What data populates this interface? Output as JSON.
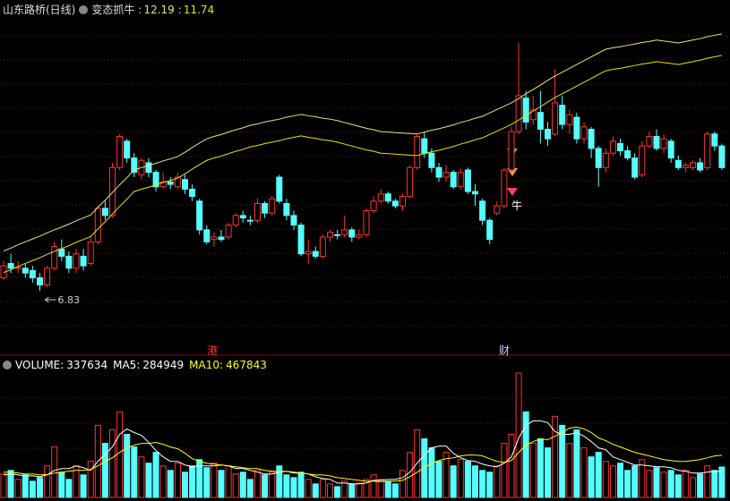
{
  "chart_data": [
    {
      "type": "candlestick",
      "title": "山东路桥(日线)",
      "indicator": "变态抓牛",
      "signal": "牛",
      "events": [
        "港",
        "财"
      ],
      "low_label": 6.83,
      "up_color": "#ff3232",
      "down_color": "#54ffff",
      "grid": true,
      "ylim": [
        5.71,
        12.56
      ],
      "open": [
        7.1,
        7.4,
        7.3,
        7.3,
        7.25,
        7.1,
        6.95,
        7.3,
        7.7,
        7.55,
        7.3,
        7.55,
        7.4,
        7.85,
        8.55,
        8.4,
        9.4,
        9.95,
        9.6,
        9.25,
        9.5,
        9.3,
        9.0,
        9.1,
        9.0,
        9.15,
        8.95,
        8.7,
        8.1,
        7.9,
        7.95,
        7.95,
        8.2,
        8.4,
        8.3,
        8.3,
        8.65,
        8.45,
        9.2,
        8.65,
        8.4,
        8.2,
        7.6,
        7.65,
        7.55,
        7.95,
        8.0,
        8.0,
        8.1,
        7.95,
        8.0,
        8.5,
        8.7,
        8.85,
        8.7,
        8.6,
        8.8,
        9.4,
        10.0,
        9.7,
        9.4,
        9.2,
        9.3,
        9.0,
        9.35,
        8.9,
        8.7,
        8.3,
        8.45,
        8.6,
        9.35,
        10.15,
        10.85,
        10.4,
        10.55,
        10.2,
        10.1,
        10.7,
        10.3,
        10.45,
        10.0,
        10.2,
        9.8,
        9.4,
        9.7,
        9.9,
        9.75,
        9.6,
        9.25,
        9.85,
        10.05,
        9.8,
        9.95,
        9.55,
        9.4,
        9.4,
        9.5,
        9.4,
        10.1,
        9.85
      ],
      "high": [
        7.45,
        7.6,
        7.45,
        7.4,
        7.35,
        7.2,
        7.35,
        7.85,
        7.9,
        7.65,
        7.7,
        7.7,
        7.95,
        8.6,
        8.7,
        9.5,
        10.1,
        10.0,
        9.7,
        9.6,
        9.6,
        9.35,
        9.3,
        9.2,
        9.3,
        9.25,
        9.05,
        8.75,
        8.2,
        8.05,
        8.1,
        8.25,
        8.45,
        8.5,
        8.4,
        8.75,
        8.7,
        8.8,
        9.25,
        8.75,
        8.5,
        8.25,
        7.9,
        7.75,
        8.0,
        8.1,
        8.1,
        8.4,
        8.15,
        8.1,
        8.55,
        8.8,
        8.95,
        8.9,
        8.75,
        8.85,
        9.45,
        10.1,
        10.15,
        9.8,
        9.5,
        9.45,
        9.35,
        9.4,
        9.4,
        9.05,
        8.75,
        8.35,
        8.7,
        9.4,
        10.25,
        12.0,
        11.0,
        10.9,
        11.0,
        10.35,
        11.45,
        10.9,
        10.6,
        10.55,
        10.35,
        10.25,
        9.85,
        9.8,
        10.05,
        10.0,
        9.85,
        9.7,
        9.95,
        10.15,
        10.2,
        10.1,
        10.0,
        9.65,
        9.5,
        9.55,
        9.6,
        10.15,
        10.15,
        9.9
      ],
      "low": [
        7.05,
        7.2,
        7.2,
        7.1,
        7.0,
        6.83,
        6.9,
        7.25,
        7.45,
        7.2,
        7.2,
        7.25,
        7.35,
        7.8,
        8.3,
        8.35,
        9.35,
        9.5,
        9.2,
        9.15,
        9.2,
        8.9,
        8.95,
        8.95,
        8.95,
        8.85,
        8.7,
        8.0,
        7.8,
        7.75,
        7.85,
        7.9,
        8.15,
        8.25,
        8.2,
        8.25,
        8.35,
        8.4,
        8.65,
        8.3,
        8.1,
        7.55,
        7.4,
        7.5,
        7.5,
        7.85,
        7.9,
        7.95,
        7.85,
        7.9,
        7.95,
        8.45,
        8.65,
        8.65,
        8.55,
        8.5,
        8.75,
        9.35,
        9.6,
        9.3,
        9.1,
        9.1,
        8.95,
        8.95,
        8.85,
        8.6,
        8.2,
        7.8,
        8.4,
        8.55,
        9.3,
        10.1,
        10.2,
        10.3,
        9.9,
        9.85,
        10.05,
        10.2,
        10.1,
        9.9,
        9.9,
        9.6,
        9.0,
        9.3,
        9.65,
        9.65,
        9.55,
        9.15,
        9.2,
        9.8,
        9.75,
        9.7,
        9.5,
        9.35,
        9.3,
        9.35,
        9.3,
        9.35,
        9.75,
        9.35
      ],
      "close": [
        7.35,
        7.3,
        7.32,
        7.2,
        7.1,
        6.95,
        7.3,
        7.75,
        7.55,
        7.3,
        7.6,
        7.35,
        7.85,
        8.55,
        8.4,
        9.4,
        10.05,
        9.6,
        9.3,
        9.55,
        9.3,
        9.0,
        9.1,
        9.05,
        9.2,
        8.95,
        8.8,
        8.1,
        7.85,
        7.95,
        7.9,
        8.2,
        8.4,
        8.35,
        8.3,
        8.65,
        8.45,
        8.75,
        8.7,
        8.4,
        8.2,
        7.6,
        7.65,
        7.55,
        7.95,
        8.05,
        8.0,
        8.1,
        7.95,
        8.0,
        8.5,
        8.7,
        8.85,
        8.7,
        8.6,
        8.8,
        9.4,
        10.05,
        9.7,
        9.4,
        9.2,
        9.3,
        9.0,
        9.3,
        8.9,
        8.85,
        8.3,
        7.9,
        8.6,
        9.35,
        10.15,
        10.9,
        10.35,
        10.6,
        10.2,
        10.0,
        10.75,
        10.3,
        10.5,
        10.0,
        10.25,
        9.8,
        9.4,
        9.7,
        9.95,
        9.75,
        9.6,
        9.2,
        9.85,
        10.05,
        9.8,
        10.0,
        9.6,
        9.4,
        9.45,
        9.5,
        9.35,
        10.1,
        9.85,
        9.4
      ],
      "series": [
        {
          "color": "#e6e67a",
          "values": [
            7.66,
            7.72,
            7.79,
            7.85,
            7.91,
            7.97,
            8.04,
            8.1,
            8.16,
            8.22,
            8.29,
            8.35,
            8.41,
            8.57,
            8.72,
            8.88,
            9.04,
            9.19,
            9.35,
            9.4,
            9.44,
            9.49,
            9.54,
            9.58,
            9.63,
            9.72,
            9.82,
            9.91,
            10.0,
            10.05,
            10.09,
            10.14,
            10.19,
            10.23,
            10.28,
            10.31,
            10.35,
            10.38,
            10.41,
            10.45,
            10.48,
            10.51,
            10.48,
            10.46,
            10.43,
            10.41,
            10.38,
            10.34,
            10.3,
            10.26,
            10.22,
            10.19,
            10.15,
            10.14,
            10.13,
            10.12,
            10.11,
            10.1,
            10.14,
            10.18,
            10.21,
            10.25,
            10.29,
            10.34,
            10.38,
            10.43,
            10.47,
            10.54,
            10.61,
            10.68,
            10.75,
            10.84,
            10.94,
            11.03,
            11.12,
            11.22,
            11.31,
            11.39,
            11.47,
            11.55,
            11.63,
            11.71,
            11.79,
            11.87,
            11.9,
            11.92,
            11.95,
            11.98,
            12.01,
            12.03,
            12.06,
            12.04,
            12.02,
            12.0,
            12.03,
            12.06,
            12.09,
            12.13,
            12.16,
            12.19
          ]
        },
        {
          "color": "#e6e600",
          "values": [
            7.21,
            7.27,
            7.34,
            7.4,
            7.46,
            7.52,
            7.59,
            7.65,
            7.71,
            7.77,
            7.84,
            7.9,
            7.96,
            8.12,
            8.27,
            8.43,
            8.59,
            8.74,
            8.9,
            8.95,
            8.99,
            9.04,
            9.09,
            9.13,
            9.18,
            9.27,
            9.37,
            9.46,
            9.55,
            9.6,
            9.64,
            9.69,
            9.74,
            9.78,
            9.83,
            9.86,
            9.9,
            9.93,
            9.96,
            10.0,
            10.03,
            10.06,
            10.03,
            10.01,
            9.98,
            9.96,
            9.93,
            9.89,
            9.85,
            9.81,
            9.77,
            9.74,
            9.7,
            9.69,
            9.68,
            9.67,
            9.66,
            9.65,
            9.69,
            9.73,
            9.76,
            9.8,
            9.84,
            9.89,
            9.93,
            9.98,
            10.02,
            10.09,
            10.16,
            10.23,
            10.3,
            10.39,
            10.49,
            10.58,
            10.67,
            10.77,
            10.86,
            10.94,
            11.02,
            11.1,
            11.18,
            11.26,
            11.34,
            11.42,
            11.45,
            11.47,
            11.5,
            11.53,
            11.56,
            11.58,
            11.61,
            11.59,
            11.57,
            11.55,
            11.58,
            11.61,
            11.64,
            11.68,
            11.71,
            11.74
          ]
        }
      ]
    },
    {
      "type": "volume",
      "ylim": [
        0,
        1400000
      ],
      "grid": true,
      "series": [
        {
          "name": "VOLUME",
          "color": "#ffffff",
          "values": [
            260000,
            300000,
            200000,
            250000,
            180000,
            220000,
            350000,
            560000,
            280000,
            200000,
            350000,
            250000,
            400000,
            800000,
            600000,
            750000,
            950000,
            700000,
            560000,
            450000,
            380000,
            500000,
            350000,
            300000,
            380000,
            280000,
            350000,
            420000,
            330000,
            380000,
            300000,
            350000,
            260000,
            280000,
            200000,
            300000,
            250000,
            280000,
            350000,
            250000,
            220000,
            280000,
            200000,
            150000,
            200000,
            150000,
            120000,
            180000,
            150000,
            160000,
            200000,
            250000,
            200000,
            180000,
            150000,
            300000,
            500000,
            750000,
            650000,
            550000,
            400000,
            500000,
            350000,
            420000,
            400000,
            350000,
            300000,
            280000,
            350000,
            600000,
            700000,
            1380000,
            950000,
            600000,
            650000,
            550000,
            900000,
            800000,
            600000,
            750000,
            550000,
            450000,
            500000,
            400000,
            350000,
            380000,
            300000,
            350000,
            420000,
            300000,
            330000,
            280000,
            300000,
            250000,
            300000,
            220000,
            260000,
            350000,
            300000,
            337634
          ]
        },
        {
          "name": "MA5",
          "color": "#ffffff",
          "values": [
            250000,
            260000,
            250000,
            240000,
            240000,
            230000,
            250000,
            300000,
            320000,
            320000,
            350000,
            330000,
            300000,
            400000,
            480000,
            560000,
            700000,
            760000,
            720000,
            690000,
            610000,
            520000,
            450000,
            400000,
            400000,
            360000,
            340000,
            350000,
            350000,
            350000,
            360000,
            350000,
            320000,
            320000,
            300000,
            280000,
            260000,
            260000,
            280000,
            290000,
            270000,
            270000,
            260000,
            230000,
            210000,
            200000,
            160000,
            160000,
            150000,
            150000,
            160000,
            190000,
            190000,
            200000,
            200000,
            220000,
            280000,
            380000,
            470000,
            550000,
            570000,
            570000,
            490000,
            440000,
            410000,
            400000,
            370000,
            350000,
            340000,
            380000,
            450000,
            660000,
            800000,
            850000,
            850000,
            830000,
            730000,
            700000,
            700000,
            720000,
            680000,
            620000,
            550000,
            530000,
            450000,
            420000,
            390000,
            360000,
            360000,
            350000,
            340000,
            340000,
            330000,
            300000,
            290000,
            270000,
            270000,
            280000,
            290000,
            284949
          ]
        },
        {
          "name": "MA10",
          "color": "#ffff00",
          "values": [
            280000,
            280000,
            270000,
            260000,
            260000,
            250000,
            255000,
            270000,
            280000,
            290000,
            300000,
            300000,
            310000,
            350000,
            400000,
            440000,
            500000,
            550000,
            580000,
            600000,
            600000,
            610000,
            590000,
            560000,
            540000,
            490000,
            430000,
            400000,
            380000,
            370000,
            360000,
            350000,
            340000,
            330000,
            320000,
            320000,
            300000,
            290000,
            290000,
            290000,
            280000,
            270000,
            260000,
            250000,
            250000,
            240000,
            220000,
            210000,
            200000,
            190000,
            180000,
            180000,
            175000,
            180000,
            180000,
            190000,
            230000,
            280000,
            330000,
            380000,
            410000,
            430000,
            440000,
            460000,
            470000,
            470000,
            460000,
            430000,
            400000,
            390000,
            410000,
            500000,
            580000,
            620000,
            650000,
            640000,
            680000,
            720000,
            770000,
            780000,
            760000,
            720000,
            660000,
            630000,
            590000,
            560000,
            530000,
            500000,
            480000,
            460000,
            440000,
            420000,
            410000,
            400000,
            400000,
            410000,
            420000,
            440000,
            460000,
            467843
          ]
        }
      ]
    }
  ]
}
